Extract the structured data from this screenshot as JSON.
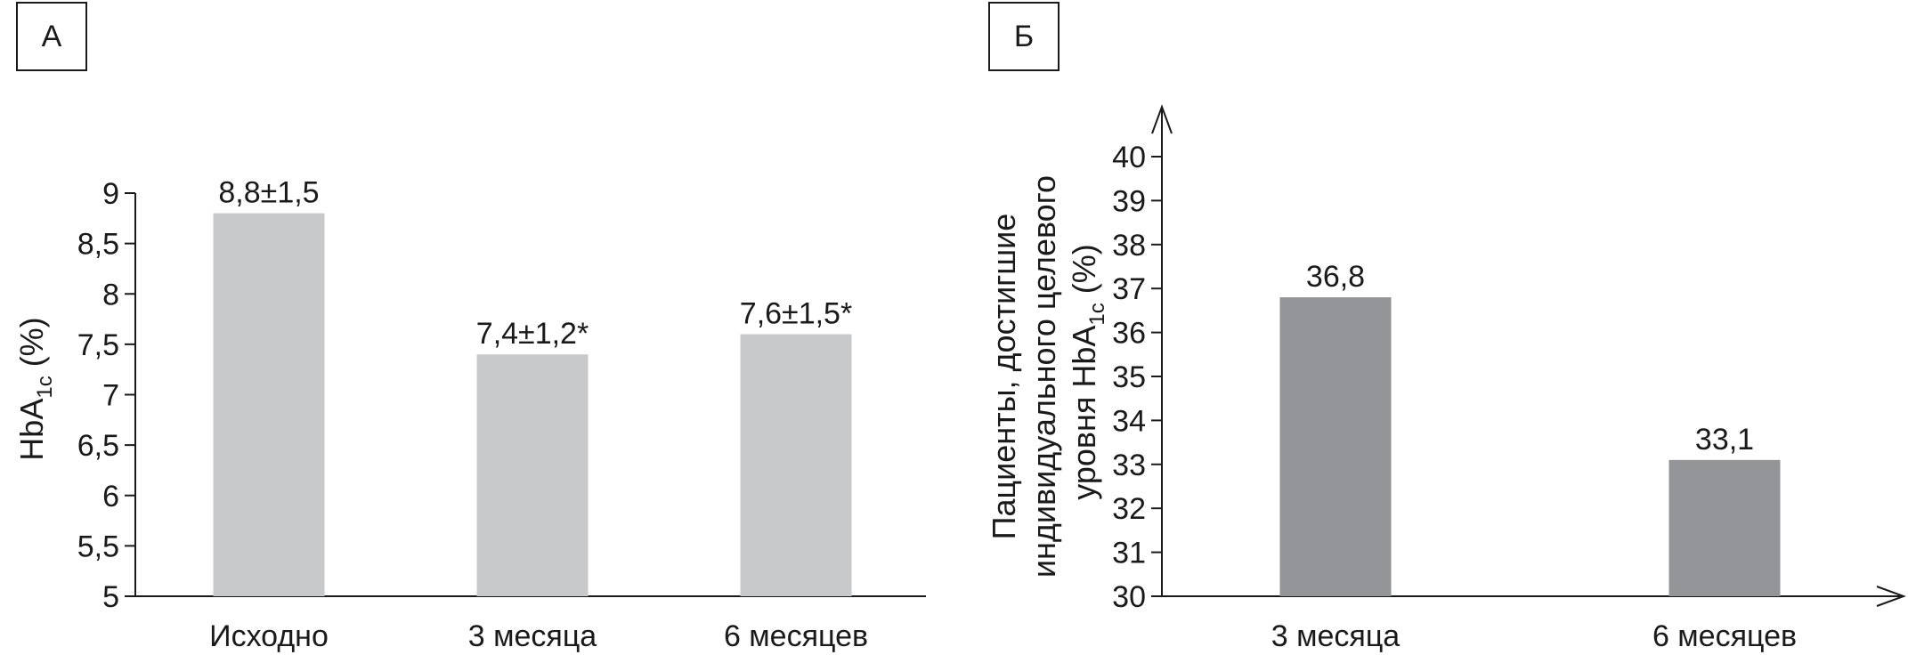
{
  "chart_data": [
    {
      "panel": "А",
      "type": "bar",
      "categories": [
        "Исходно",
        "3 месяца",
        "6 месяцев"
      ],
      "values": [
        8.8,
        7.4,
        7.6
      ],
      "data_labels": [
        "8,8±1,5",
        "7,4±1,2*",
        "7,6±1,5*"
      ],
      "ylabel_main": "HbA",
      "ylabel_sub": "1c",
      "ylabel_unit": " (%)",
      "ylim": [
        5,
        9
      ],
      "ticks": [
        5,
        5.5,
        6,
        6.5,
        7,
        7.5,
        8,
        8.5,
        9
      ],
      "tick_labels": [
        "5",
        "5,5",
        "6",
        "6,5",
        "7",
        "7,5",
        "8",
        "8,5",
        "9"
      ],
      "bar_color": "#c8c9cb",
      "grid": false
    },
    {
      "panel": "Б",
      "type": "bar",
      "categories": [
        "3 месяца",
        "6 месяцев"
      ],
      "values": [
        36.8,
        33.1
      ],
      "data_labels": [
        "36,8",
        "33,1"
      ],
      "ylabel_lines": [
        "Пациенты, достигшие",
        "индивидуального целевого"
      ],
      "ylabel_line3_main": "уровня HbA",
      "ylabel_line3_sub": "1c",
      "ylabel_line3_unit": " (%)",
      "ylim": [
        30,
        40
      ],
      "ticks": [
        30,
        31,
        32,
        33,
        34,
        35,
        36,
        37,
        38,
        39,
        40
      ],
      "tick_labels": [
        "30",
        "31",
        "32",
        "33",
        "34",
        "35",
        "36",
        "37",
        "38",
        "39",
        "40"
      ],
      "bar_color": "#939598",
      "grid": false,
      "axis_arrows": true
    }
  ]
}
